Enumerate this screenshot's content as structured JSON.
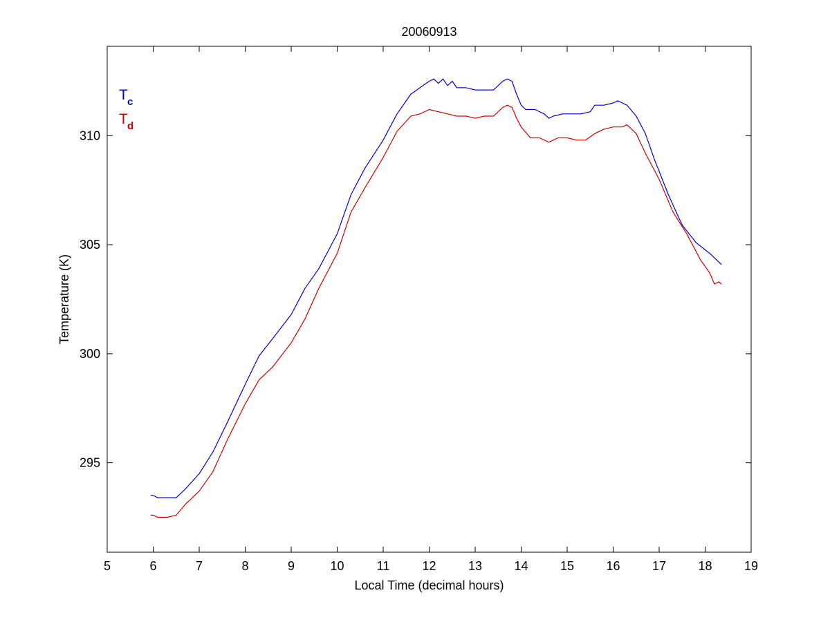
{
  "chart_data": {
    "type": "line",
    "title": "20060913",
    "xlabel": "Local Time (decimal hours)",
    "ylabel": "Temperature (K)",
    "xlim": [
      5,
      19
    ],
    "ylim": [
      290.9,
      314.1
    ],
    "xticks": [
      5,
      6,
      7,
      8,
      9,
      10,
      11,
      12,
      13,
      14,
      15,
      16,
      17,
      18,
      19
    ],
    "yticks": [
      295,
      300,
      305,
      310
    ],
    "grid": false,
    "legend_position": "top-left",
    "series": [
      {
        "name": "Tc",
        "legend_main": "T",
        "legend_sub": "c",
        "color": "#0000cc",
        "x": [
          5.95,
          6.0,
          6.1,
          6.3,
          6.5,
          6.7,
          7.0,
          7.3,
          7.6,
          8.0,
          8.3,
          8.6,
          9.0,
          9.3,
          9.6,
          10.0,
          10.3,
          10.6,
          11.0,
          11.3,
          11.6,
          11.8,
          12.0,
          12.1,
          12.2,
          12.3,
          12.4,
          12.5,
          12.6,
          12.8,
          13.0,
          13.2,
          13.4,
          13.6,
          13.7,
          13.8,
          13.9,
          14.0,
          14.1,
          14.3,
          14.5,
          14.6,
          14.7,
          14.9,
          15.1,
          15.3,
          15.5,
          15.6,
          15.8,
          16.0,
          16.1,
          16.2,
          16.3,
          16.5,
          16.7,
          16.9,
          17.2,
          17.5,
          17.8,
          18.1,
          18.35
        ],
        "y": [
          293.5,
          293.5,
          293.4,
          293.4,
          293.4,
          293.8,
          294.5,
          295.5,
          296.8,
          298.6,
          299.9,
          300.7,
          301.8,
          303.0,
          303.9,
          305.5,
          307.3,
          308.5,
          309.8,
          311.0,
          311.9,
          312.2,
          312.5,
          312.6,
          312.4,
          312.6,
          312.3,
          312.5,
          312.2,
          312.2,
          312.1,
          312.1,
          312.1,
          312.5,
          312.6,
          312.5,
          311.9,
          311.4,
          311.2,
          311.2,
          311.0,
          310.8,
          310.9,
          311.0,
          311.0,
          311.0,
          311.1,
          311.4,
          311.4,
          311.5,
          311.6,
          311.5,
          311.4,
          310.9,
          310.1,
          308.9,
          307.3,
          305.9,
          305.1,
          304.6,
          304.1
        ]
      },
      {
        "name": "Td",
        "legend_main": "T",
        "legend_sub": "d",
        "color": "#cc0000",
        "x": [
          5.95,
          6.0,
          6.1,
          6.3,
          6.5,
          6.7,
          7.0,
          7.3,
          7.6,
          8.0,
          8.3,
          8.6,
          9.0,
          9.3,
          9.6,
          10.0,
          10.3,
          10.6,
          11.0,
          11.3,
          11.6,
          11.8,
          12.0,
          12.2,
          12.4,
          12.6,
          12.8,
          13.0,
          13.2,
          13.4,
          13.6,
          13.7,
          13.8,
          13.9,
          14.0,
          14.2,
          14.4,
          14.6,
          14.8,
          15.0,
          15.2,
          15.4,
          15.6,
          15.8,
          16.0,
          16.2,
          16.3,
          16.5,
          16.7,
          17.0,
          17.3,
          17.6,
          17.9,
          18.1,
          18.2,
          18.3,
          18.35
        ],
        "y": [
          292.6,
          292.6,
          292.5,
          292.5,
          292.6,
          293.1,
          293.7,
          294.6,
          296.0,
          297.7,
          298.8,
          299.4,
          300.5,
          301.6,
          303.0,
          304.6,
          306.5,
          307.6,
          309.0,
          310.2,
          310.9,
          311.0,
          311.2,
          311.1,
          311.0,
          310.9,
          310.9,
          310.8,
          310.9,
          310.9,
          311.3,
          311.4,
          311.3,
          310.8,
          310.4,
          309.9,
          309.9,
          309.7,
          309.9,
          309.9,
          309.8,
          309.8,
          310.1,
          310.3,
          310.4,
          310.4,
          310.5,
          310.1,
          309.2,
          308.0,
          306.5,
          305.5,
          304.3,
          303.7,
          303.2,
          303.3,
          303.2
        ]
      }
    ]
  }
}
